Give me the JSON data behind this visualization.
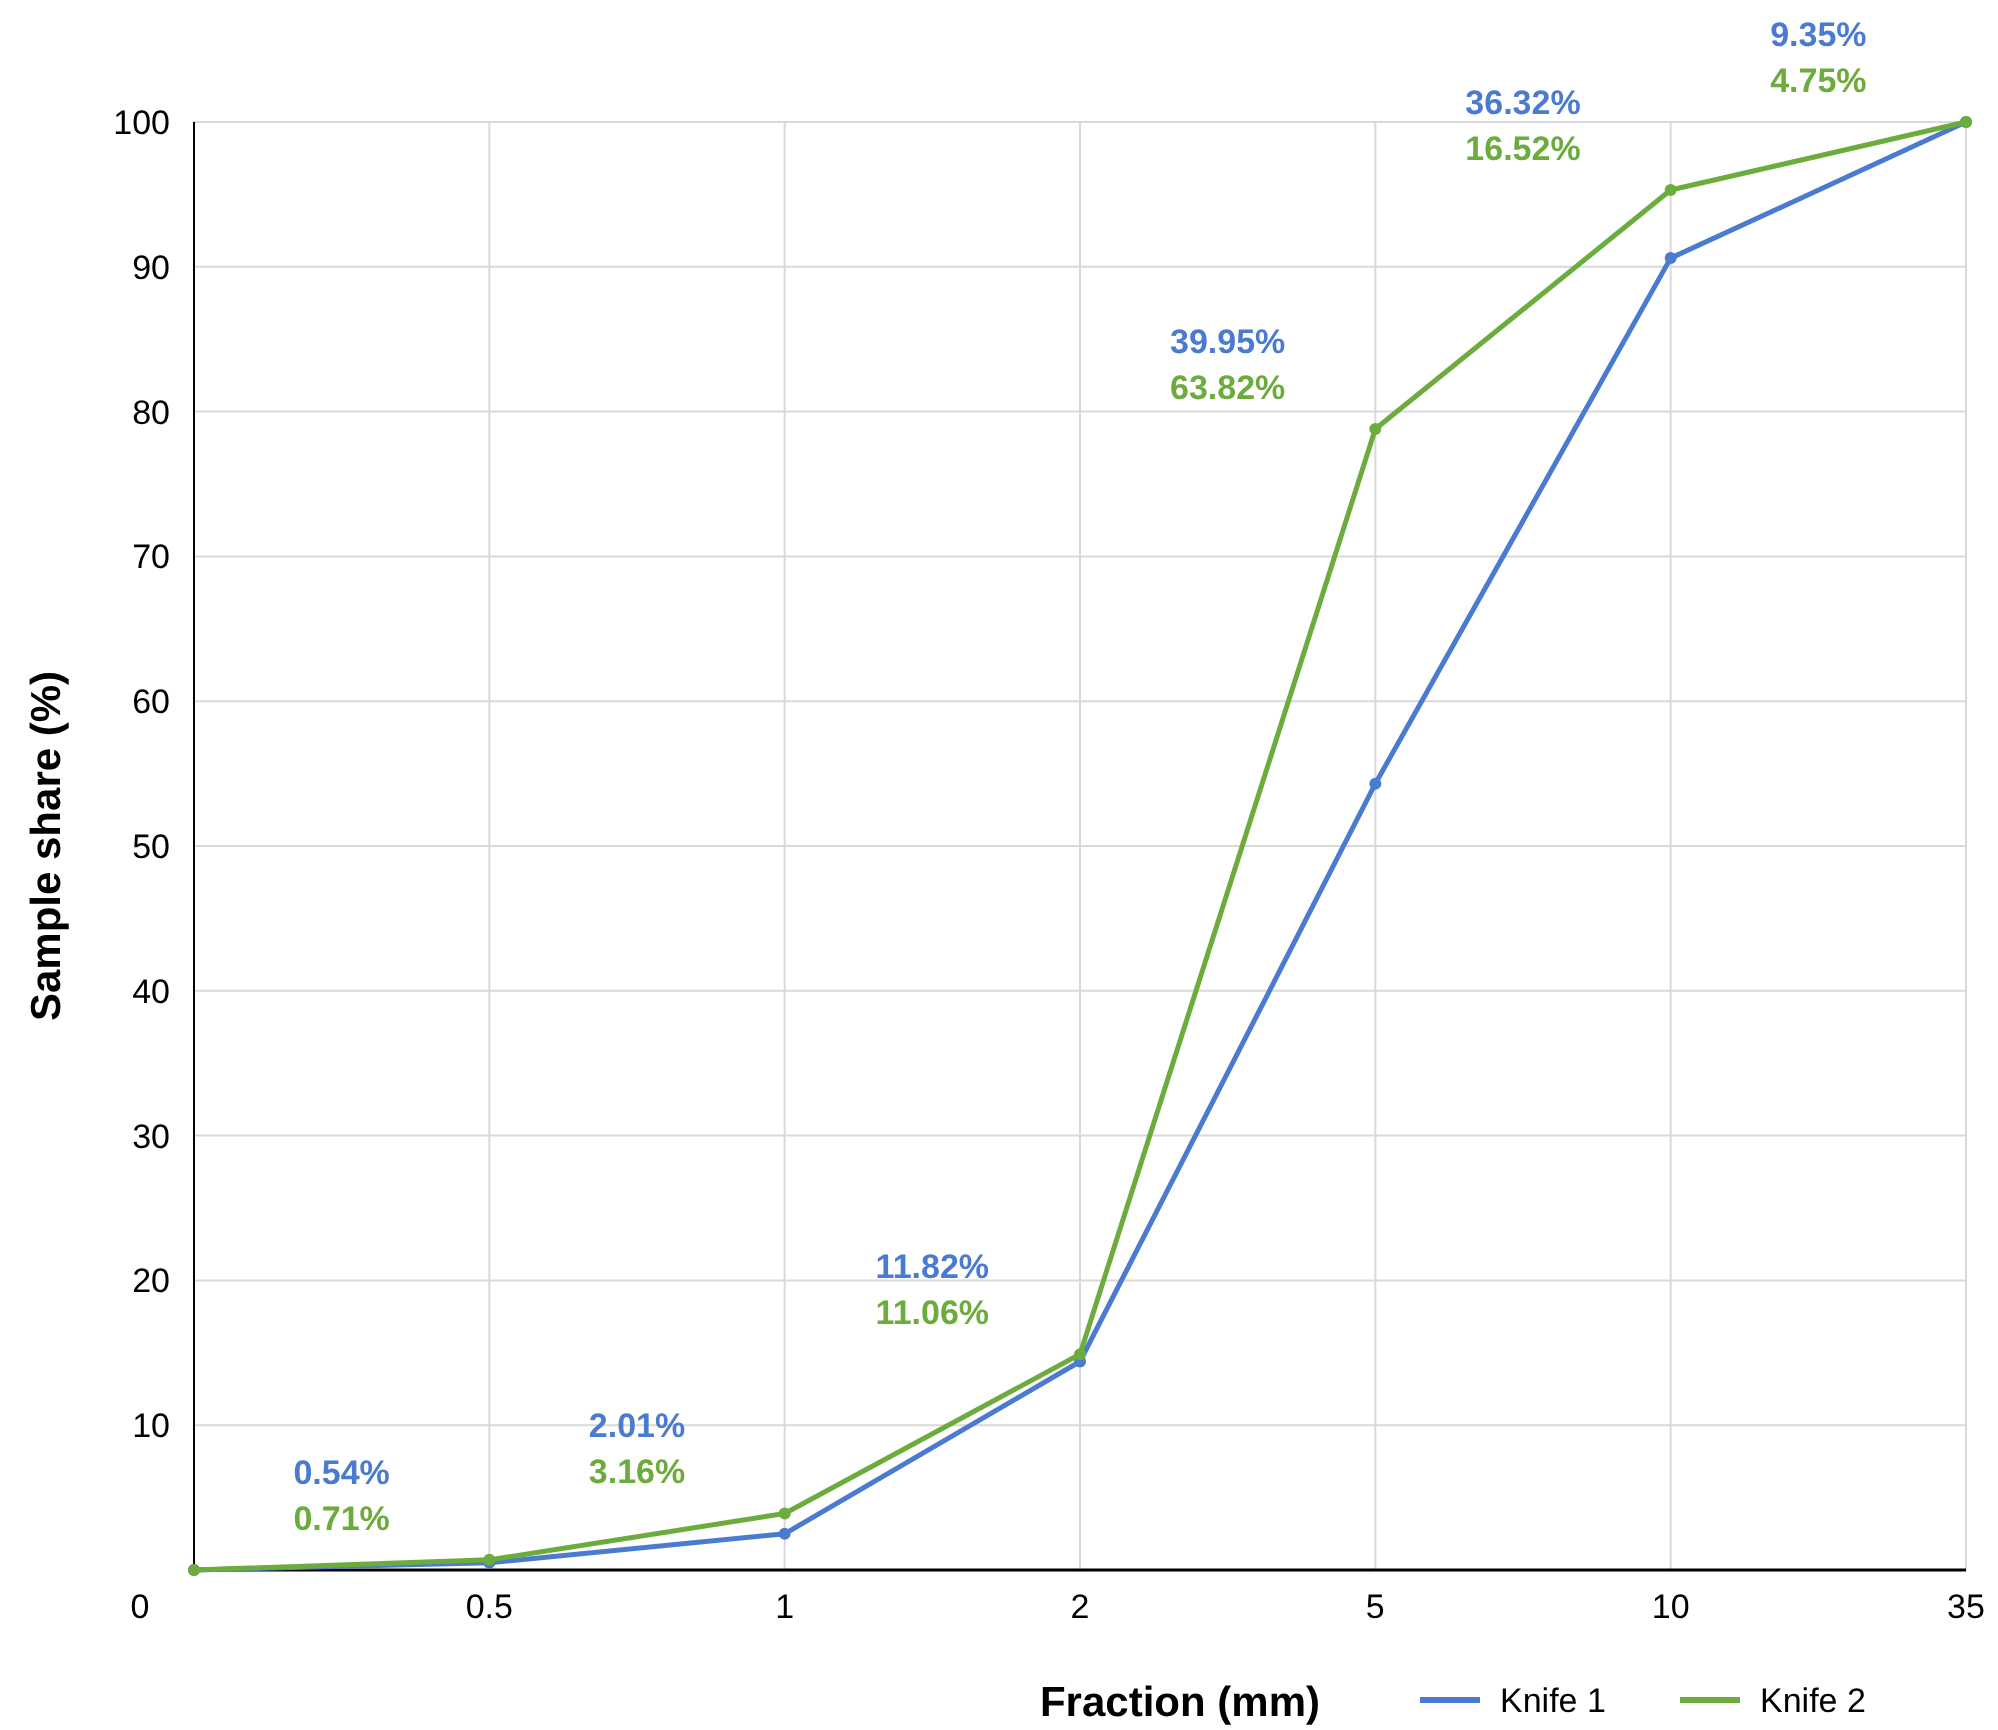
{
  "chart_data": {
    "type": "line",
    "xlabel": "Fraction (mm)",
    "ylabel": "Sample share (%)",
    "categories": [
      "0",
      "0.5",
      "1",
      "2",
      "5",
      "10",
      "35"
    ],
    "ylim": [
      0,
      100
    ],
    "yticks": [
      {
        "value": 0,
        "label": null
      },
      10,
      20,
      30,
      40,
      50,
      60,
      70,
      80,
      90,
      100
    ],
    "grid": true,
    "legend": "bottom right",
    "marker": "circle",
    "line_style": "solid",
    "series": [
      {
        "name": "Knife 1",
        "color": "#4a7bd0",
        "values": [
          0,
          0.5,
          2.5,
          14.4,
          54.3,
          90.6,
          100
        ]
      },
      {
        "name": "Knife 2",
        "color": "#6cac3d",
        "values": [
          0,
          0.7,
          3.9,
          14.9,
          78.8,
          95.3,
          100
        ]
      }
    ],
    "annotations": [
      "0.54%",
      "0.71%",
      "2.01%",
      "3.16%",
      "11.82%",
      "11.06%",
      "39.95%",
      "63.82%",
      "36.32%",
      "16.52%",
      "9.35%",
      "4.75%"
    ]
  }
}
